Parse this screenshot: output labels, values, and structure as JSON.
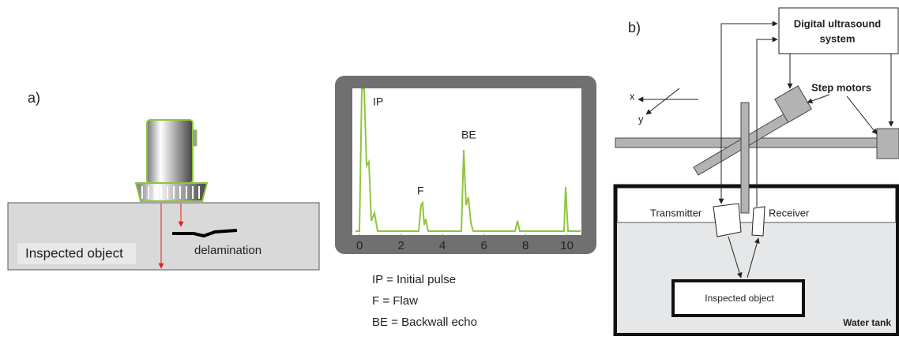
{
  "panel_a": {
    "label": "a)",
    "object_label": "Inspected object",
    "defect_label": "delamination"
  },
  "ascan": {
    "xlim": [
      -0.35,
      10.7
    ],
    "xticks": [
      0,
      2,
      4,
      6,
      8,
      10
    ],
    "peak_labels": [
      "IP",
      "F",
      "BE"
    ]
  },
  "legend": [
    "IP = Initial pulse",
    "F = Flaw",
    "BE = Backwall echo"
  ],
  "panel_b": {
    "label": "b)",
    "system_lines": [
      "Digital ultrasound",
      "system"
    ],
    "step_motors": "Step motors",
    "axis_x": "x",
    "axis_y": "y",
    "transmitter": "Transmitter",
    "receiver": "Receiver",
    "object_label": "Inspected object",
    "tank_label": "Water tank"
  }
}
